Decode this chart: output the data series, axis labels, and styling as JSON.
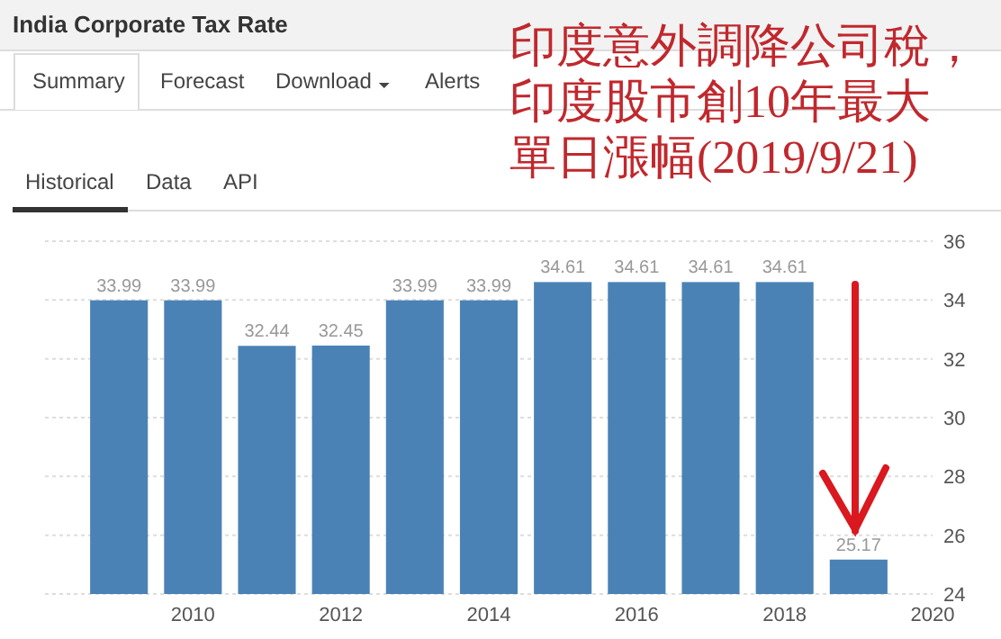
{
  "chart_data": {
    "type": "bar",
    "title": "India Corporate Tax Rate",
    "x": [
      2009,
      2010,
      2011,
      2012,
      2013,
      2014,
      2015,
      2016,
      2017,
      2018,
      2019
    ],
    "values": [
      33.99,
      33.99,
      32.44,
      32.45,
      33.99,
      33.99,
      34.61,
      34.61,
      34.61,
      34.61,
      25.17
    ],
    "color": "#4a82b5",
    "data_labels": true,
    "xlim": [
      2008,
      2020
    ],
    "xticks": [
      2010,
      2012,
      2014,
      2016,
      2018,
      2020
    ],
    "ylim": [
      24,
      36
    ],
    "yticks": [
      24,
      26,
      28,
      30,
      32,
      34,
      36
    ],
    "grid": "y",
    "annotations": [
      "Summary",
      "Forecast",
      "Download",
      "Alerts",
      "Historical",
      "Data",
      "API",
      "印度意外調降公司稅，",
      "印度股市創10年最大",
      "單日漲幅(2019/9/21)"
    ]
  }
}
